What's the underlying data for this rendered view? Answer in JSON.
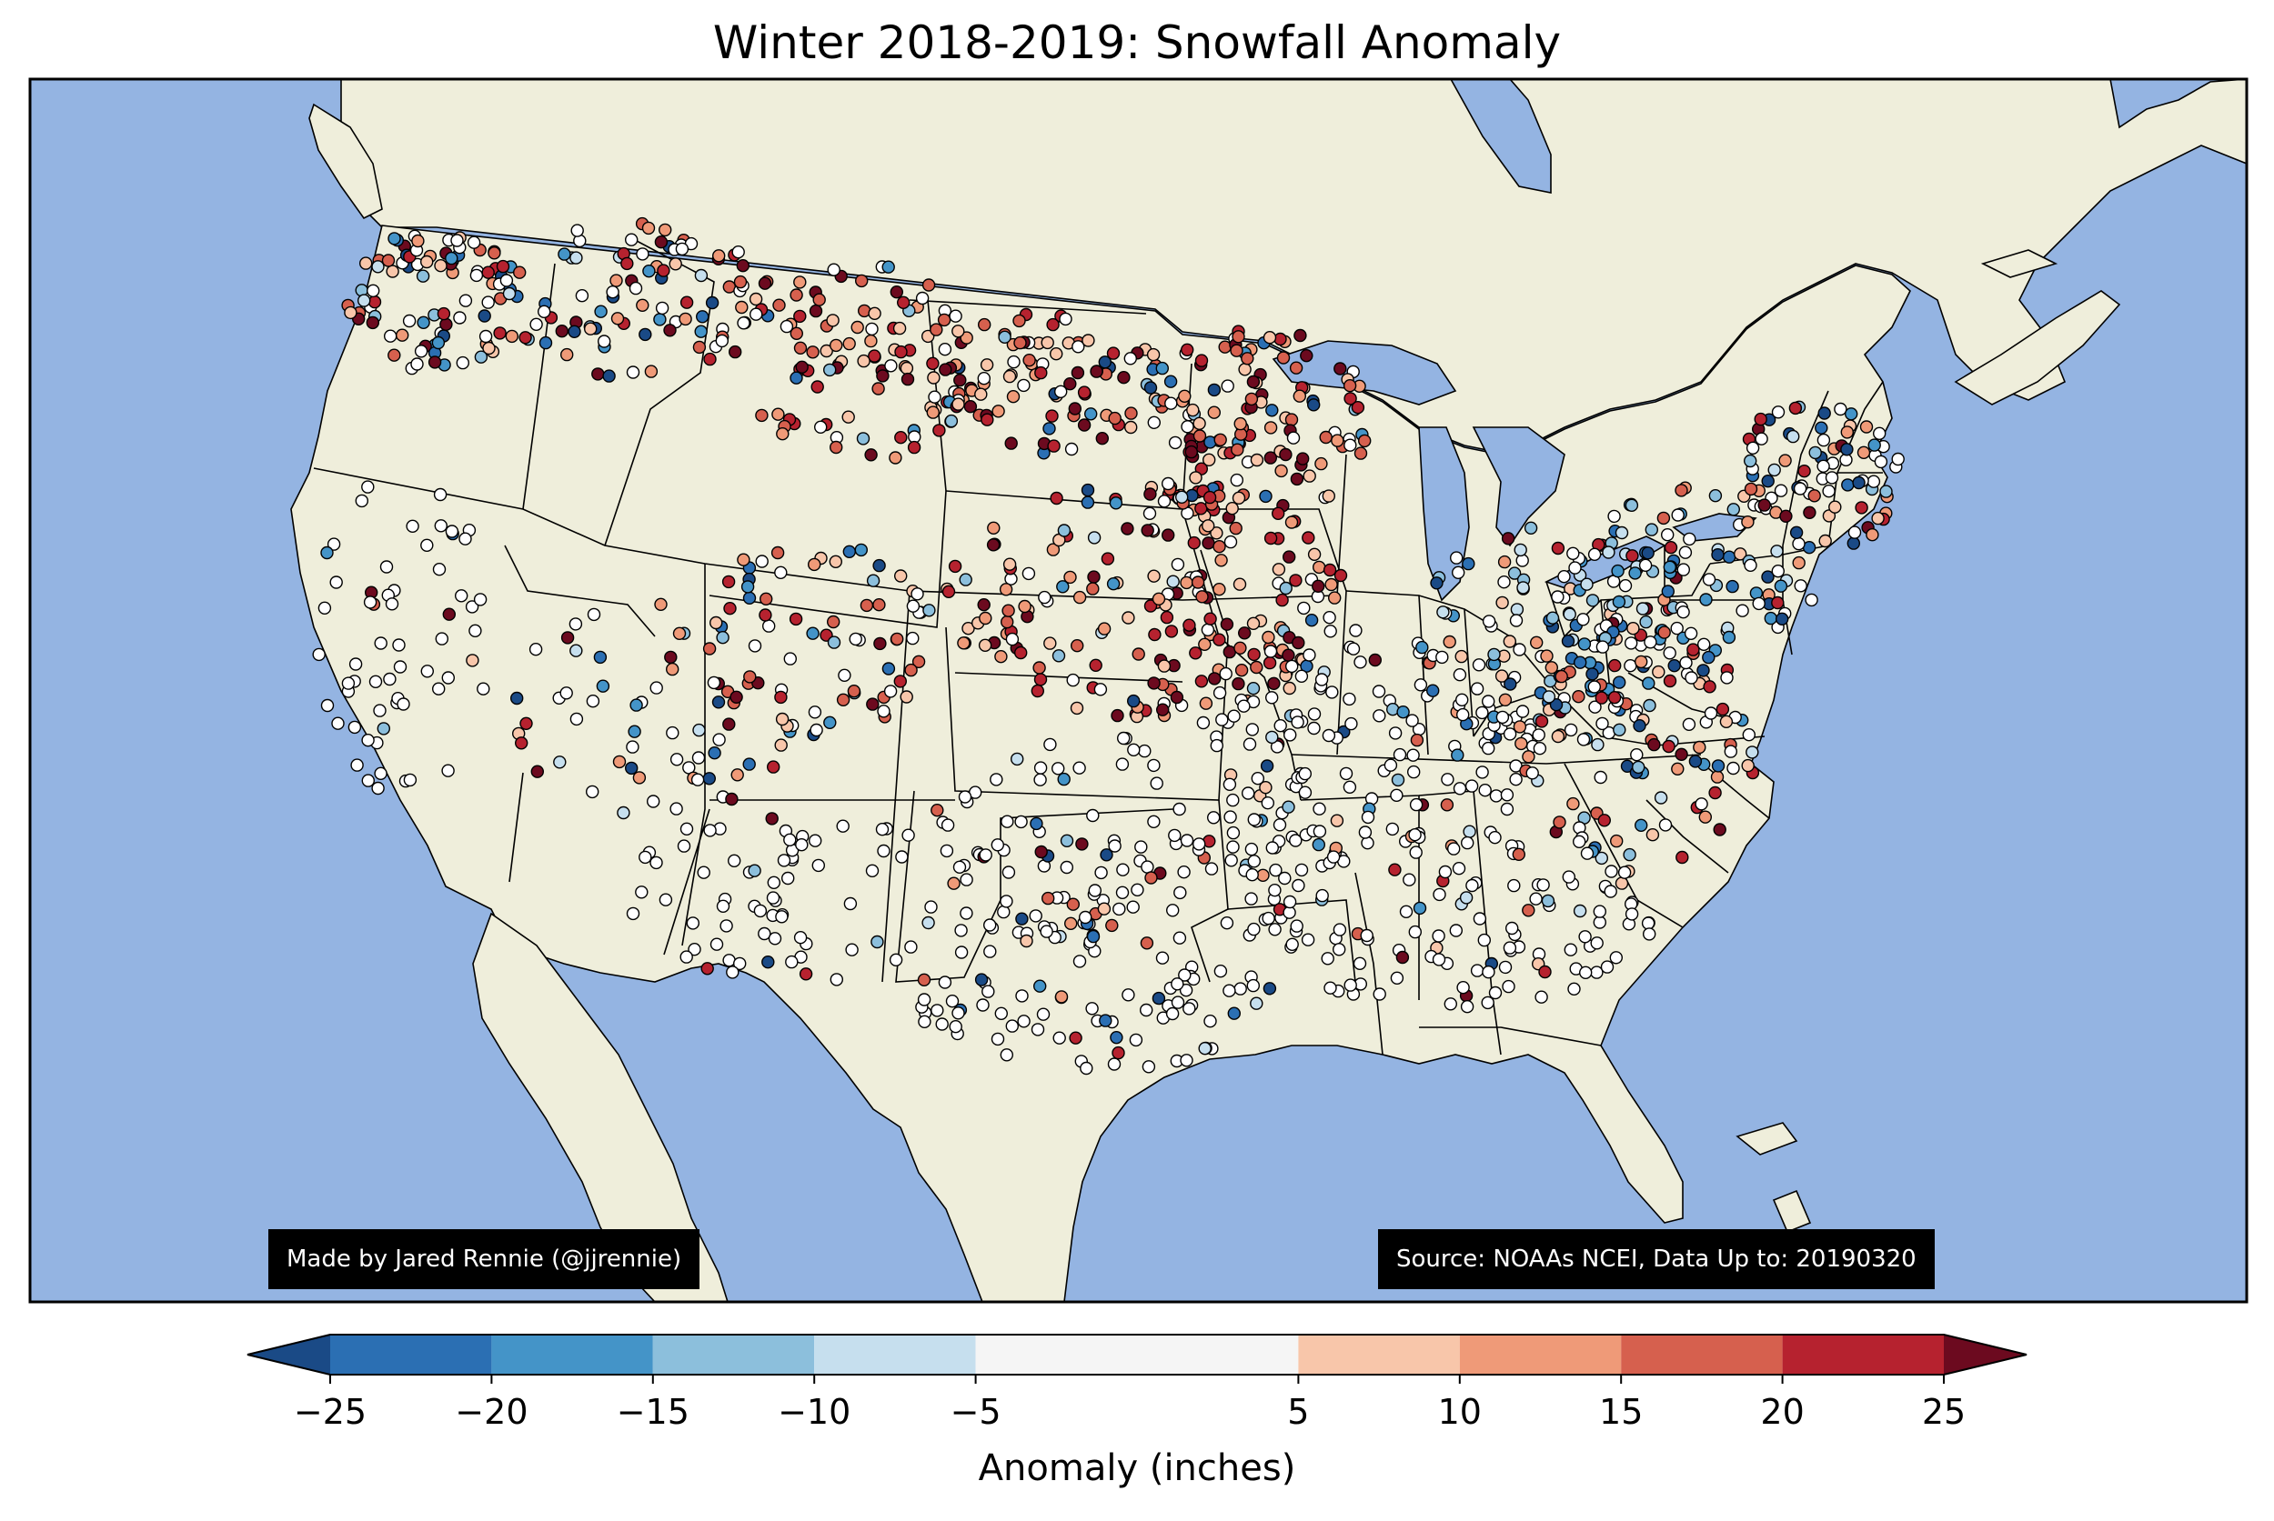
{
  "title": "Winter 2018-2019: Snowfall Anomaly",
  "credit_left": "Made by Jared Rennie (@jjrennie)",
  "credit_right": "Source: NOAAs NCEI, Data Up to: 20190320",
  "colors": {
    "ocean": "#94b4e2",
    "land": "#efeedb",
    "border": "#000000"
  },
  "colorbar": {
    "label": "Anomaly (inches)",
    "extend": "both",
    "under_color": "#1a4a86",
    "over_color": "#6c0a1f",
    "bins": [
      {
        "from": -25,
        "to": -20,
        "color": "#2b6fb3"
      },
      {
        "from": -20,
        "to": -15,
        "color": "#4494c8"
      },
      {
        "from": -15,
        "to": -10,
        "color": "#8cbfdc"
      },
      {
        "from": -10,
        "to": -5,
        "color": "#c6dfee"
      },
      {
        "from": -5,
        "to": 5,
        "color": "#f5f5f5"
      },
      {
        "from": 5,
        "to": 10,
        "color": "#f8c6aa"
      },
      {
        "from": 10,
        "to": 15,
        "color": "#ef9a78"
      },
      {
        "from": 15,
        "to": 20,
        "color": "#d6604e"
      },
      {
        "from": 20,
        "to": 25,
        "color": "#b6222f"
      }
    ],
    "ticks": [
      "−25",
      "−20",
      "−15",
      "−10",
      "−5",
      "5",
      "10",
      "15",
      "20",
      "25"
    ]
  }
}
